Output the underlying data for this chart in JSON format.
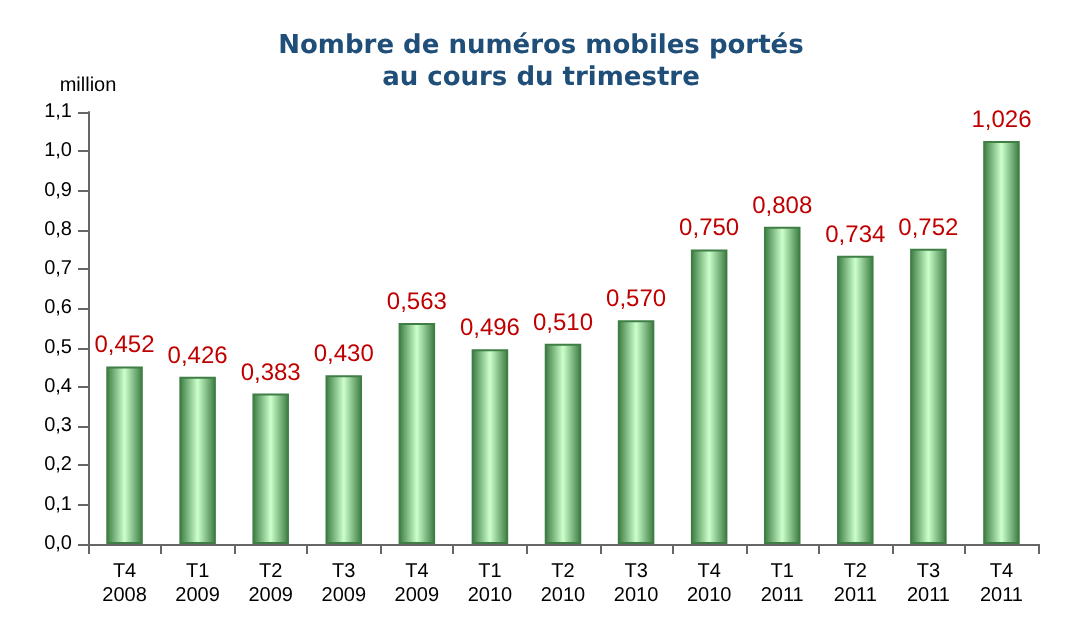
{
  "chart_data": {
    "type": "bar",
    "title": "Nombre de numéros mobiles portés\nau cours du trimestre",
    "ylabel": "million",
    "categories": [
      "T4\n2008",
      "T1\n2009",
      "T2\n2009",
      "T3\n2009",
      "T4\n2009",
      "T1\n2010",
      "T2\n2010",
      "T3\n2010",
      "T4\n2010",
      "T1\n2011",
      "T2\n2011",
      "T3\n2011",
      "T4\n2011"
    ],
    "values": [
      0.452,
      0.426,
      0.383,
      0.43,
      0.563,
      0.496,
      0.51,
      0.57,
      0.75,
      0.808,
      0.734,
      0.752,
      1.026
    ],
    "value_labels": [
      "0,452",
      "0,426",
      "0,383",
      "0,430",
      "0,563",
      "0,496",
      "0,510",
      "0,570",
      "0,750",
      "0,808",
      "0,734",
      "0,752",
      "1,026"
    ],
    "color": "#3f7f45",
    "ylim": [
      0,
      1.1
    ],
    "yticks": [
      {
        "value": 0,
        "label": "0,0"
      },
      {
        "value": 0.1,
        "label": "0,1"
      },
      {
        "value": 0.2,
        "label": "0,2"
      },
      {
        "value": 0.3,
        "label": "0,3"
      },
      {
        "value": 0.4,
        "label": "0,4"
      },
      {
        "value": 0.5,
        "label": "0,5"
      },
      {
        "value": 0.6,
        "label": "0,6"
      },
      {
        "value": 0.7,
        "label": "0,7"
      },
      {
        "value": 0.8,
        "label": "0,8"
      },
      {
        "value": 0.9,
        "label": "0,9"
      },
      {
        "value": 1.0,
        "label": "1,0"
      },
      {
        "value": 1.1,
        "label": "1,1"
      }
    ],
    "grid": false
  }
}
